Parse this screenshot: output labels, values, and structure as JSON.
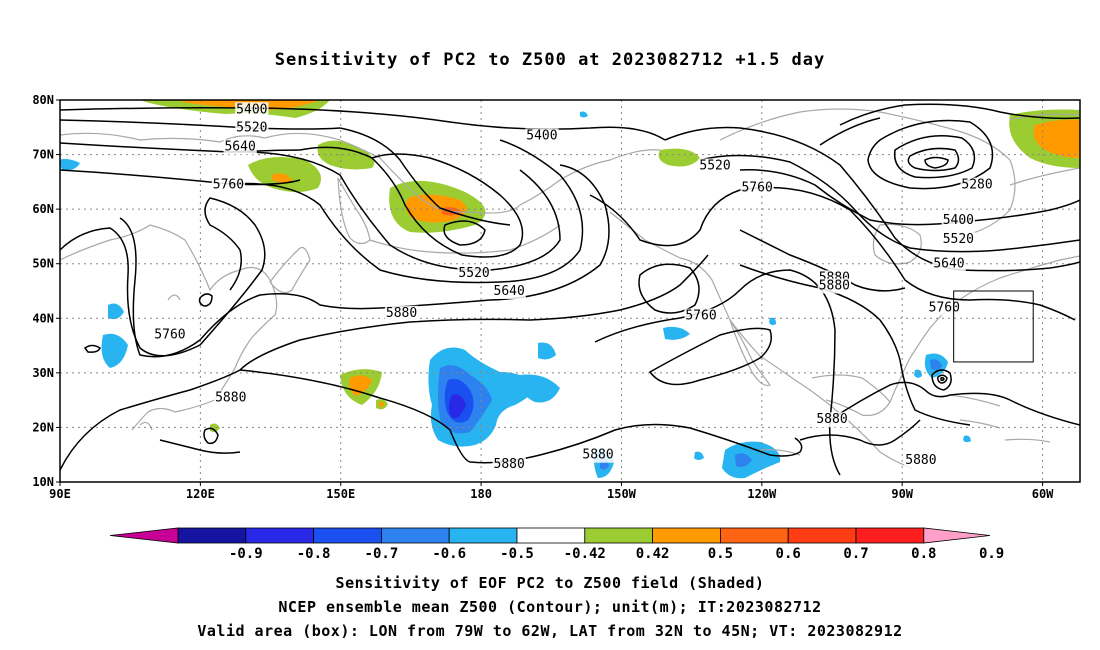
{
  "title": "Sensitivity of PC2 to Z500 at 2023082712 +1.5 day",
  "map": {
    "extent": {
      "lon_min": 90,
      "lon_max": 308,
      "lat_min": 10,
      "lat_max": 80
    },
    "lon_ticks": [
      {
        "lon": 90,
        "label": "90E"
      },
      {
        "lon": 120,
        "label": "120E"
      },
      {
        "lon": 150,
        "label": "150E"
      },
      {
        "lon": 180,
        "label": "180"
      },
      {
        "lon": 210,
        "label": "150W"
      },
      {
        "lon": 240,
        "label": "120W"
      },
      {
        "lon": 270,
        "label": "90W"
      },
      {
        "lon": 300,
        "label": "60W"
      }
    ],
    "lat_ticks": [
      {
        "lat": 10,
        "label": "10N"
      },
      {
        "lat": 20,
        "label": "20N"
      },
      {
        "lat": 30,
        "label": "30N"
      },
      {
        "lat": 40,
        "label": "40N"
      },
      {
        "lat": 50,
        "label": "50N"
      },
      {
        "lat": 60,
        "label": "60N"
      },
      {
        "lat": 70,
        "label": "70N"
      },
      {
        "lat": 80,
        "label": "80N"
      }
    ],
    "grid": "dotted",
    "valid_box": {
      "lon_west": 281,
      "lon_east": 298,
      "lat_south": 32,
      "lat_north": 45
    },
    "contour_labels": [
      {
        "text": "5400",
        "lon": 131,
        "lat": 78.3
      },
      {
        "text": "5520",
        "lon": 131,
        "lat": 75
      },
      {
        "text": "5640",
        "lon": 128.5,
        "lat": 71.5
      },
      {
        "text": "5760",
        "lon": 126,
        "lat": 64.5
      },
      {
        "text": "5400",
        "lon": 193,
        "lat": 73.5
      },
      {
        "text": "5520",
        "lon": 178.5,
        "lat": 48.3
      },
      {
        "text": "5640",
        "lon": 186,
        "lat": 45
      },
      {
        "text": "5880",
        "lon": 163,
        "lat": 41
      },
      {
        "text": "5760",
        "lon": 113.5,
        "lat": 37
      },
      {
        "text": "5880",
        "lon": 126.5,
        "lat": 25.5
      },
      {
        "text": "5880",
        "lon": 186,
        "lat": 13.3
      },
      {
        "text": "5880",
        "lon": 205,
        "lat": 15
      },
      {
        "text": "5760",
        "lon": 227,
        "lat": 40.5
      },
      {
        "text": "5520",
        "lon": 230,
        "lat": 68
      },
      {
        "text": "5760",
        "lon": 239,
        "lat": 64
      },
      {
        "text": "5880",
        "lon": 255.5,
        "lat": 47.5
      },
      {
        "text": "5880",
        "lon": 255.5,
        "lat": 46
      },
      {
        "text": "5880",
        "lon": 255,
        "lat": 21.5
      },
      {
        "text": "5880",
        "lon": 274,
        "lat": 14
      },
      {
        "text": "5280",
        "lon": 286,
        "lat": 64.5
      },
      {
        "text": "5400",
        "lon": 282,
        "lat": 58
      },
      {
        "text": "5520",
        "lon": 282,
        "lat": 54.5
      },
      {
        "text": "5640",
        "lon": 280,
        "lat": 50
      },
      {
        "text": "5760",
        "lon": 279,
        "lat": 42
      }
    ]
  },
  "colorbar": {
    "labels": [
      "-0.9",
      "-0.8",
      "-0.7",
      "-0.6",
      "-0.5",
      "-0.42",
      "0.42",
      "0.5",
      "0.6",
      "0.7",
      "0.8",
      "0.9"
    ],
    "colors": [
      "#1414a0",
      "#2828e6",
      "#1a50f0",
      "#2d82f0",
      "#28b4f0",
      "#ffffff",
      "#9bcd32",
      "#ff9a00",
      "#ff6414",
      "#ff3c14",
      "#ff1e1e"
    ],
    "low_end_color": "#c80096",
    "high_end_color": "#ffa0c8"
  },
  "captions": [
    "Sensitivity of EOF PC2 to Z500 field (Shaded)",
    "NCEP ensemble mean Z500 (Contour); unit(m); IT:2023082712",
    "Valid area (box): LON from 79W to 62W, LAT from 32N to 45N; VT: 2023082912"
  ]
}
